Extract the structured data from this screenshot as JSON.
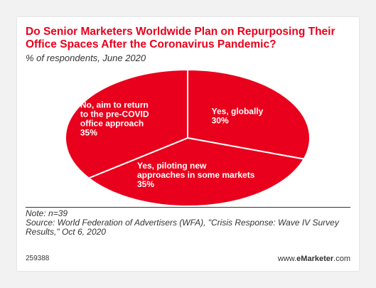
{
  "title": "Do Senior Marketers Worldwide Plan on Repurposing Their Office Spaces After the Coronavirus Pandemic?",
  "subtitle": "% of respondents, June 2020",
  "chart_data": {
    "type": "pie",
    "title": "Do Senior Marketers Worldwide Plan on Repurposing Their Office Spaces After the Coronavirus Pandemic?",
    "unit": "%",
    "categories": [
      "Yes, globally",
      "Yes, piloting new approaches in some markets",
      "No, aim to return to the pre-COVID office approach"
    ],
    "values": [
      30,
      35,
      35
    ],
    "labels": [
      "30%",
      "35%",
      "35%"
    ],
    "color": "#e8001c",
    "separator_color": "#ffffff"
  },
  "slices": [
    {
      "lines": [
        "Yes, globally"
      ],
      "value": "30%"
    },
    {
      "lines": [
        "Yes, piloting new",
        "approaches in some markets"
      ],
      "value": "35%"
    },
    {
      "lines": [
        "No, aim to return",
        "to the pre-COVID",
        "office approach"
      ],
      "value": "35%"
    }
  ],
  "note": "Note: n=39",
  "source": "Source: World Federation of Advertisers (WFA), \"Crisis Response: Wave IV Survey Results,\" Oct 6, 2020",
  "chart_id": "259388",
  "brand": {
    "prefix": "www.",
    "name": "eMarketer",
    "suffix": ".com"
  }
}
